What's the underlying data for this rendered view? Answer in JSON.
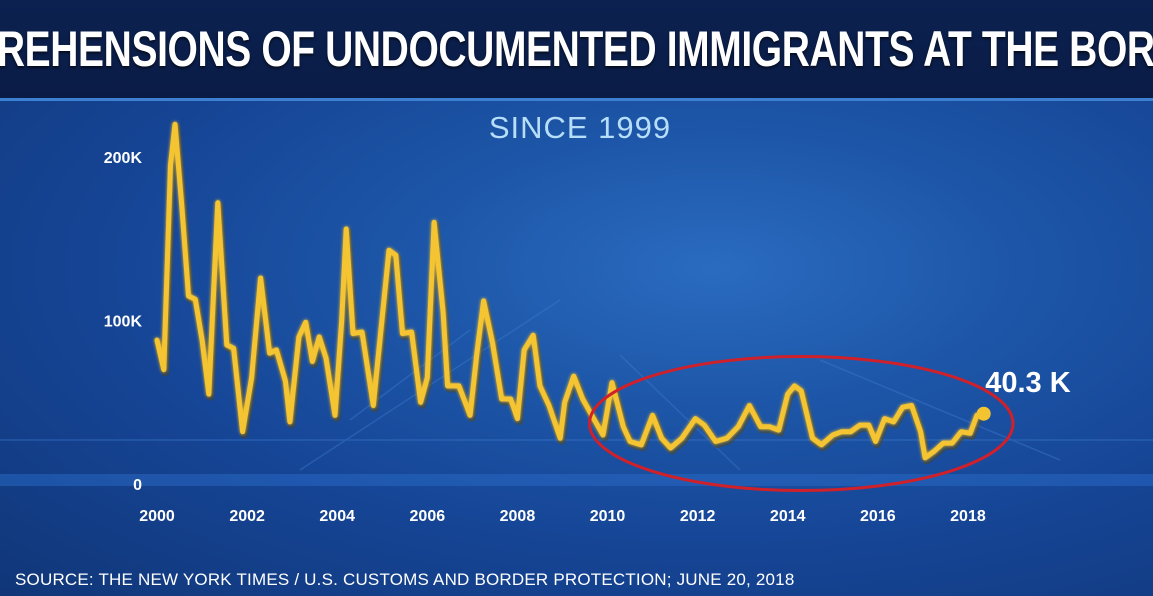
{
  "header": {
    "title": "APPREHENSIONS OF UNDOCUMENTED IMMIGRANTS AT THE BORDER",
    "subtitle": "SINCE 1999"
  },
  "footer": {
    "source": "SOURCE: THE NEW YORK TIMES / U.S. CUSTOMS AND BORDER PROTECTION; JUNE 20, 2018"
  },
  "colors": {
    "title_bar": "#0b1e4a",
    "background": "#1a4fa0",
    "line": "#f4c430",
    "highlight_ellipse": "#d0202a",
    "subtitle": "#b6def8",
    "text": "#ffffff"
  },
  "chart_data": {
    "type": "line",
    "title": "APPREHENSIONS OF UNDOCUMENTED IMMIGRANTS AT THE BORDER",
    "subtitle": "SINCE 1999",
    "xlabel": "",
    "ylabel": "",
    "xlim": [
      1999.8,
      2019.2
    ],
    "ylim": [
      0,
      230000
    ],
    "x_ticks": [
      2000,
      2002,
      2004,
      2006,
      2008,
      2010,
      2012,
      2014,
      2016,
      2018
    ],
    "y_ticks": [
      0,
      100000,
      200000
    ],
    "y_tick_labels": [
      "0",
      "100K",
      "200K"
    ],
    "grid": false,
    "legend": "none",
    "annotation": {
      "label": "40.3 K",
      "x": 2018.4,
      "y": 43000
    },
    "highlight": {
      "shape": "ellipse",
      "x_range": [
        2009.6,
        2019.0
      ],
      "y_range": [
        -4000,
        78000
      ]
    },
    "series": [
      {
        "values": [
          [
            2000.0,
            88000
          ],
          [
            2000.15,
            70000
          ],
          [
            2000.3,
            195000
          ],
          [
            2000.4,
            220000
          ],
          [
            2000.55,
            170000
          ],
          [
            2000.7,
            115000
          ],
          [
            2000.85,
            113000
          ],
          [
            2001.0,
            88000
          ],
          [
            2001.15,
            55000
          ],
          [
            2001.35,
            172000
          ],
          [
            2001.55,
            85000
          ],
          [
            2001.7,
            83000
          ],
          [
            2001.9,
            32000
          ],
          [
            2002.1,
            65000
          ],
          [
            2002.3,
            126000
          ],
          [
            2002.5,
            80000
          ],
          [
            2002.65,
            82000
          ],
          [
            2002.85,
            63000
          ],
          [
            2002.95,
            38000
          ],
          [
            2003.15,
            90000
          ],
          [
            2003.3,
            99000
          ],
          [
            2003.45,
            75000
          ],
          [
            2003.6,
            90000
          ],
          [
            2003.75,
            77000
          ],
          [
            2003.95,
            42000
          ],
          [
            2004.1,
            100000
          ],
          [
            2004.2,
            156000
          ],
          [
            2004.35,
            92000
          ],
          [
            2004.55,
            93000
          ],
          [
            2004.8,
            48000
          ],
          [
            2005.15,
            143000
          ],
          [
            2005.3,
            140000
          ],
          [
            2005.45,
            92000
          ],
          [
            2005.65,
            93000
          ],
          [
            2005.85,
            50000
          ],
          [
            2006.0,
            65000
          ],
          [
            2006.15,
            160000
          ],
          [
            2006.35,
            105000
          ],
          [
            2006.45,
            60000
          ],
          [
            2006.7,
            60000
          ],
          [
            2006.95,
            42000
          ],
          [
            2007.1,
            80000
          ],
          [
            2007.25,
            112000
          ],
          [
            2007.45,
            86000
          ],
          [
            2007.65,
            52000
          ],
          [
            2007.85,
            52000
          ],
          [
            2008.0,
            40000
          ],
          [
            2008.15,
            82000
          ],
          [
            2008.35,
            91000
          ],
          [
            2008.5,
            60000
          ],
          [
            2008.7,
            48000
          ],
          [
            2008.95,
            28000
          ],
          [
            2009.05,
            50000
          ],
          [
            2009.25,
            66000
          ],
          [
            2009.45,
            52000
          ],
          [
            2009.65,
            42000
          ],
          [
            2009.9,
            30000
          ],
          [
            2010.1,
            62000
          ],
          [
            2010.35,
            35000
          ],
          [
            2010.5,
            26000
          ],
          [
            2010.75,
            24000
          ],
          [
            2011.0,
            42000
          ],
          [
            2011.2,
            28000
          ],
          [
            2011.4,
            22000
          ],
          [
            2011.65,
            28000
          ],
          [
            2011.95,
            40000
          ],
          [
            2012.15,
            36000
          ],
          [
            2012.4,
            26000
          ],
          [
            2012.65,
            28000
          ],
          [
            2012.9,
            35000
          ],
          [
            2013.15,
            48000
          ],
          [
            2013.4,
            35000
          ],
          [
            2013.6,
            35000
          ],
          [
            2013.8,
            33000
          ],
          [
            2014.0,
            55000
          ],
          [
            2014.15,
            60000
          ],
          [
            2014.3,
            57000
          ],
          [
            2014.55,
            28000
          ],
          [
            2014.75,
            24000
          ],
          [
            2015.0,
            30000
          ],
          [
            2015.2,
            32000
          ],
          [
            2015.4,
            32000
          ],
          [
            2015.6,
            36000
          ],
          [
            2015.8,
            36000
          ],
          [
            2015.95,
            26000
          ],
          [
            2016.15,
            40000
          ],
          [
            2016.35,
            38000
          ],
          [
            2016.55,
            47000
          ],
          [
            2016.75,
            48000
          ],
          [
            2016.95,
            32000
          ],
          [
            2017.05,
            16000
          ],
          [
            2017.25,
            20000
          ],
          [
            2017.45,
            25000
          ],
          [
            2017.65,
            25000
          ],
          [
            2017.85,
            32000
          ],
          [
            2018.05,
            31000
          ],
          [
            2018.2,
            42000
          ],
          [
            2018.35,
            43000
          ]
        ]
      }
    ]
  }
}
